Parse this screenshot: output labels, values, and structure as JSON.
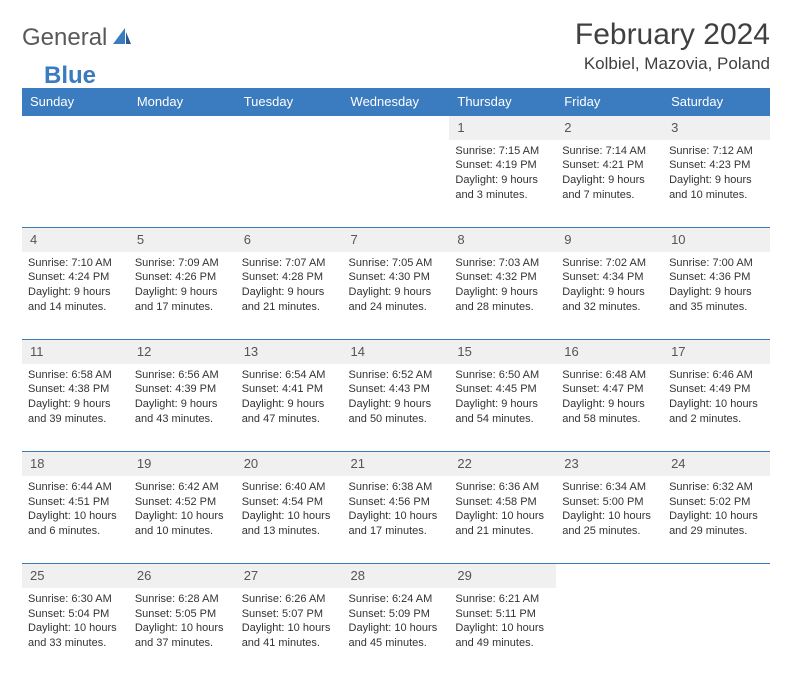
{
  "brand": {
    "text_a": "General",
    "text_b": "Blue"
  },
  "title": "February 2024",
  "location": "Kolbiel, Mazovia, Poland",
  "colors": {
    "header_bg": "#3b7bbf",
    "header_text": "#ffffff",
    "daynum_bg": "#f0f0f0",
    "border": "#3b7bbf",
    "body_text": "#333333",
    "logo_gray": "#58595b",
    "logo_blue": "#3b7bbf"
  },
  "typography": {
    "title_fontsize": 30,
    "location_fontsize": 17,
    "header_fontsize": 13,
    "cell_fontsize": 11
  },
  "weekdays": [
    "Sunday",
    "Monday",
    "Tuesday",
    "Wednesday",
    "Thursday",
    "Friday",
    "Saturday"
  ],
  "weeks": [
    [
      null,
      null,
      null,
      null,
      {
        "n": "1",
        "sunrise": "Sunrise: 7:15 AM",
        "sunset": "Sunset: 4:19 PM",
        "daylight": "Daylight: 9 hours and 3 minutes."
      },
      {
        "n": "2",
        "sunrise": "Sunrise: 7:14 AM",
        "sunset": "Sunset: 4:21 PM",
        "daylight": "Daylight: 9 hours and 7 minutes."
      },
      {
        "n": "3",
        "sunrise": "Sunrise: 7:12 AM",
        "sunset": "Sunset: 4:23 PM",
        "daylight": "Daylight: 9 hours and 10 minutes."
      }
    ],
    [
      {
        "n": "4",
        "sunrise": "Sunrise: 7:10 AM",
        "sunset": "Sunset: 4:24 PM",
        "daylight": "Daylight: 9 hours and 14 minutes."
      },
      {
        "n": "5",
        "sunrise": "Sunrise: 7:09 AM",
        "sunset": "Sunset: 4:26 PM",
        "daylight": "Daylight: 9 hours and 17 minutes."
      },
      {
        "n": "6",
        "sunrise": "Sunrise: 7:07 AM",
        "sunset": "Sunset: 4:28 PM",
        "daylight": "Daylight: 9 hours and 21 minutes."
      },
      {
        "n": "7",
        "sunrise": "Sunrise: 7:05 AM",
        "sunset": "Sunset: 4:30 PM",
        "daylight": "Daylight: 9 hours and 24 minutes."
      },
      {
        "n": "8",
        "sunrise": "Sunrise: 7:03 AM",
        "sunset": "Sunset: 4:32 PM",
        "daylight": "Daylight: 9 hours and 28 minutes."
      },
      {
        "n": "9",
        "sunrise": "Sunrise: 7:02 AM",
        "sunset": "Sunset: 4:34 PM",
        "daylight": "Daylight: 9 hours and 32 minutes."
      },
      {
        "n": "10",
        "sunrise": "Sunrise: 7:00 AM",
        "sunset": "Sunset: 4:36 PM",
        "daylight": "Daylight: 9 hours and 35 minutes."
      }
    ],
    [
      {
        "n": "11",
        "sunrise": "Sunrise: 6:58 AM",
        "sunset": "Sunset: 4:38 PM",
        "daylight": "Daylight: 9 hours and 39 minutes."
      },
      {
        "n": "12",
        "sunrise": "Sunrise: 6:56 AM",
        "sunset": "Sunset: 4:39 PM",
        "daylight": "Daylight: 9 hours and 43 minutes."
      },
      {
        "n": "13",
        "sunrise": "Sunrise: 6:54 AM",
        "sunset": "Sunset: 4:41 PM",
        "daylight": "Daylight: 9 hours and 47 minutes."
      },
      {
        "n": "14",
        "sunrise": "Sunrise: 6:52 AM",
        "sunset": "Sunset: 4:43 PM",
        "daylight": "Daylight: 9 hours and 50 minutes."
      },
      {
        "n": "15",
        "sunrise": "Sunrise: 6:50 AM",
        "sunset": "Sunset: 4:45 PM",
        "daylight": "Daylight: 9 hours and 54 minutes."
      },
      {
        "n": "16",
        "sunrise": "Sunrise: 6:48 AM",
        "sunset": "Sunset: 4:47 PM",
        "daylight": "Daylight: 9 hours and 58 minutes."
      },
      {
        "n": "17",
        "sunrise": "Sunrise: 6:46 AM",
        "sunset": "Sunset: 4:49 PM",
        "daylight": "Daylight: 10 hours and 2 minutes."
      }
    ],
    [
      {
        "n": "18",
        "sunrise": "Sunrise: 6:44 AM",
        "sunset": "Sunset: 4:51 PM",
        "daylight": "Daylight: 10 hours and 6 minutes."
      },
      {
        "n": "19",
        "sunrise": "Sunrise: 6:42 AM",
        "sunset": "Sunset: 4:52 PM",
        "daylight": "Daylight: 10 hours and 10 minutes."
      },
      {
        "n": "20",
        "sunrise": "Sunrise: 6:40 AM",
        "sunset": "Sunset: 4:54 PM",
        "daylight": "Daylight: 10 hours and 13 minutes."
      },
      {
        "n": "21",
        "sunrise": "Sunrise: 6:38 AM",
        "sunset": "Sunset: 4:56 PM",
        "daylight": "Daylight: 10 hours and 17 minutes."
      },
      {
        "n": "22",
        "sunrise": "Sunrise: 6:36 AM",
        "sunset": "Sunset: 4:58 PM",
        "daylight": "Daylight: 10 hours and 21 minutes."
      },
      {
        "n": "23",
        "sunrise": "Sunrise: 6:34 AM",
        "sunset": "Sunset: 5:00 PM",
        "daylight": "Daylight: 10 hours and 25 minutes."
      },
      {
        "n": "24",
        "sunrise": "Sunrise: 6:32 AM",
        "sunset": "Sunset: 5:02 PM",
        "daylight": "Daylight: 10 hours and 29 minutes."
      }
    ],
    [
      {
        "n": "25",
        "sunrise": "Sunrise: 6:30 AM",
        "sunset": "Sunset: 5:04 PM",
        "daylight": "Daylight: 10 hours and 33 minutes."
      },
      {
        "n": "26",
        "sunrise": "Sunrise: 6:28 AM",
        "sunset": "Sunset: 5:05 PM",
        "daylight": "Daylight: 10 hours and 37 minutes."
      },
      {
        "n": "27",
        "sunrise": "Sunrise: 6:26 AM",
        "sunset": "Sunset: 5:07 PM",
        "daylight": "Daylight: 10 hours and 41 minutes."
      },
      {
        "n": "28",
        "sunrise": "Sunrise: 6:24 AM",
        "sunset": "Sunset: 5:09 PM",
        "daylight": "Daylight: 10 hours and 45 minutes."
      },
      {
        "n": "29",
        "sunrise": "Sunrise: 6:21 AM",
        "sunset": "Sunset: 5:11 PM",
        "daylight": "Daylight: 10 hours and 49 minutes."
      },
      null,
      null
    ]
  ]
}
